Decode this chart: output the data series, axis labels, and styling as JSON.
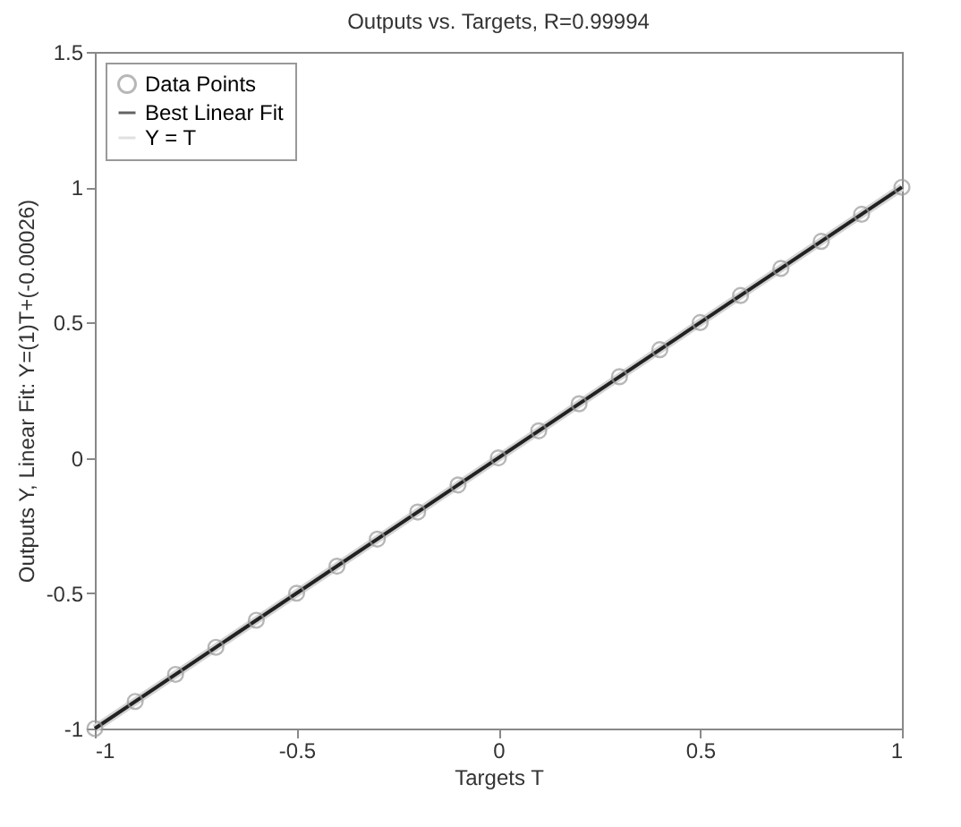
{
  "chart_data": {
    "type": "line",
    "title": "Outputs vs. Targets, R=0.99994",
    "xlabel": "Targets T",
    "ylabel": "Outputs Y,  Linear Fit: Y=(1)T+(-0.00026)",
    "xlim": [
      -1,
      1
    ],
    "ylim": [
      -1,
      1.5
    ],
    "xticks": [
      -1,
      -0.5,
      0,
      0.5,
      1
    ],
    "yticks": [
      -1,
      -0.5,
      0,
      0.5,
      1,
      1.5
    ],
    "grid": false,
    "legend": "top left",
    "series": [
      {
        "name": "Data Points",
        "type": "scatter",
        "marker": "circle",
        "color": "#9a9a9a",
        "x": [
          -1,
          -0.9,
          -0.8,
          -0.7,
          -0.6,
          -0.5,
          -0.4,
          -0.3,
          -0.2,
          -0.1,
          0,
          0.1,
          0.2,
          0.3,
          0.4,
          0.5,
          0.6,
          0.7,
          0.8,
          0.9,
          1
        ],
        "values": [
          -1,
          -0.9,
          -0.8,
          -0.7,
          -0.6,
          -0.5,
          -0.4,
          -0.3,
          -0.2,
          -0.1,
          0,
          0.1,
          0.2,
          0.3,
          0.4,
          0.5,
          0.6,
          0.7,
          0.8,
          0.9,
          1
        ]
      },
      {
        "name": "Best Linear Fit",
        "marker": "none",
        "color": "#222222",
        "x": [
          -1,
          1
        ],
        "values": [
          -1,
          1
        ]
      },
      {
        "name": "Y = T",
        "marker": "none",
        "color": "#d4d4d4",
        "x": [
          -1,
          1
        ],
        "values": [
          -1,
          1
        ]
      }
    ]
  }
}
